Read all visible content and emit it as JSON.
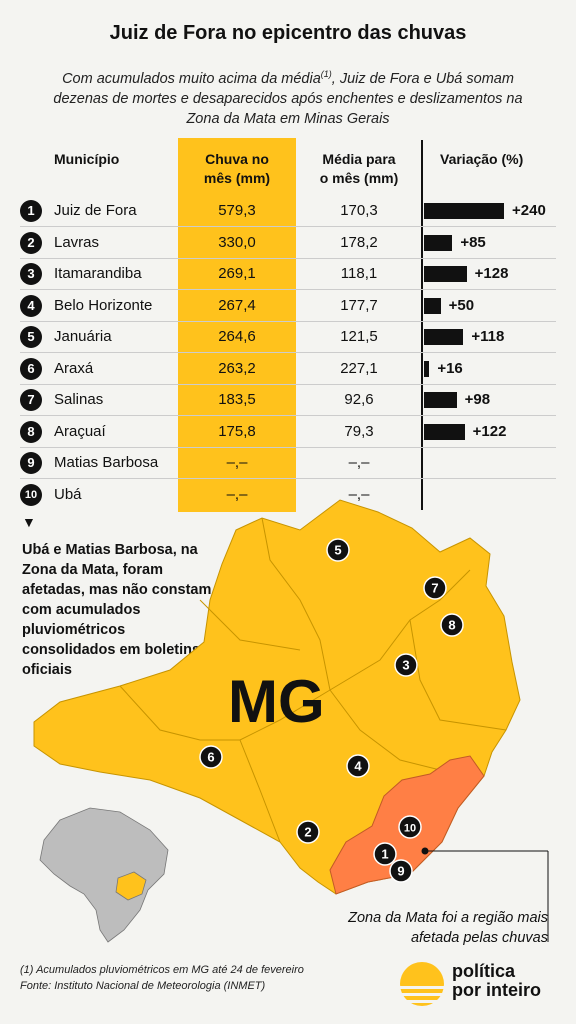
{
  "title": "Juiz de Fora no epicentro das chuvas",
  "subtitle_pre": "Com acumulados muito acima da média",
  "subtitle_sup": "(1)",
  "subtitle_post": ", Juiz de Fora e Ubá somam dezenas de mortes e desaparecidos após enchentes e deslizamentos na Zona da Mata em Minas Gerais",
  "headers": {
    "municipio": "Município",
    "chuva_line1": "Chuva no",
    "chuva_line2": "mês (mm)",
    "media_line1": "Média para",
    "media_line2": "o mês (mm)",
    "variacao": "Variação (%)"
  },
  "colors": {
    "highlight": "#ffc21c",
    "zona_da_mata": "#ff7f45",
    "bar": "#111111"
  },
  "chart_data": {
    "type": "table",
    "columns": [
      "Município",
      "Chuva no mês (mm)",
      "Média para o mês (mm)",
      "Variação (%)"
    ],
    "rows": [
      {
        "n": "1",
        "municipio": "Juiz de Fora",
        "chuva": "579,3",
        "media": "170,3",
        "variacao": 240,
        "variacao_label": "+240"
      },
      {
        "n": "2",
        "municipio": "Lavras",
        "chuva": "330,0",
        "media": "178,2",
        "variacao": 85,
        "variacao_label": "+85"
      },
      {
        "n": "3",
        "municipio": "Itamarandiba",
        "chuva": "269,1",
        "media": "118,1",
        "variacao": 128,
        "variacao_label": "+128"
      },
      {
        "n": "4",
        "municipio": "Belo Horizonte",
        "chuva": "267,4",
        "media": "177,7",
        "variacao": 50,
        "variacao_label": "+50"
      },
      {
        "n": "5",
        "municipio": "Januária",
        "chuva": "264,6",
        "media": "121,5",
        "variacao": 118,
        "variacao_label": "+118"
      },
      {
        "n": "6",
        "municipio": "Araxá",
        "chuva": "263,2",
        "media": "227,1",
        "variacao": 16,
        "variacao_label": "+16"
      },
      {
        "n": "7",
        "municipio": "Salinas",
        "chuva": "183,5",
        "media": "92,6",
        "variacao": 98,
        "variacao_label": "+98"
      },
      {
        "n": "8",
        "municipio": "Araçuaí",
        "chuva": "175,8",
        "media": "79,3",
        "variacao": 122,
        "variacao_label": "+122"
      },
      {
        "n": "9",
        "municipio": "Matias Barbosa",
        "chuva": "–,–",
        "media": "–,–",
        "variacao": null,
        "variacao_label": ""
      },
      {
        "n": "10",
        "municipio": "Ubá",
        "chuva": "–,–",
        "media": "–,–",
        "variacao": null,
        "variacao_label": ""
      }
    ],
    "variacao_max": 240
  },
  "note_arrow": "▼",
  "note": "Ubá e Matias Barbosa, na Zona da Mata, foram afetadas, mas não constam com acumulados pluviométricos consolidados em boletins oficiais",
  "map": {
    "label": "MG",
    "markers": [
      "5",
      "7",
      "8",
      "3",
      "4",
      "6",
      "2",
      "10",
      "1",
      "9"
    ]
  },
  "zona_note": "Zona da Mata foi a região mais afetada pelas chuvas",
  "footnote_line1": "(1) Acumulados pluviométricos em MG até 24 de fevereiro",
  "footnote_line2": "Fonte: Instituto Nacional de Meteorologia (INMET)",
  "logo": {
    "line1": "política",
    "line2": "por inteiro"
  }
}
